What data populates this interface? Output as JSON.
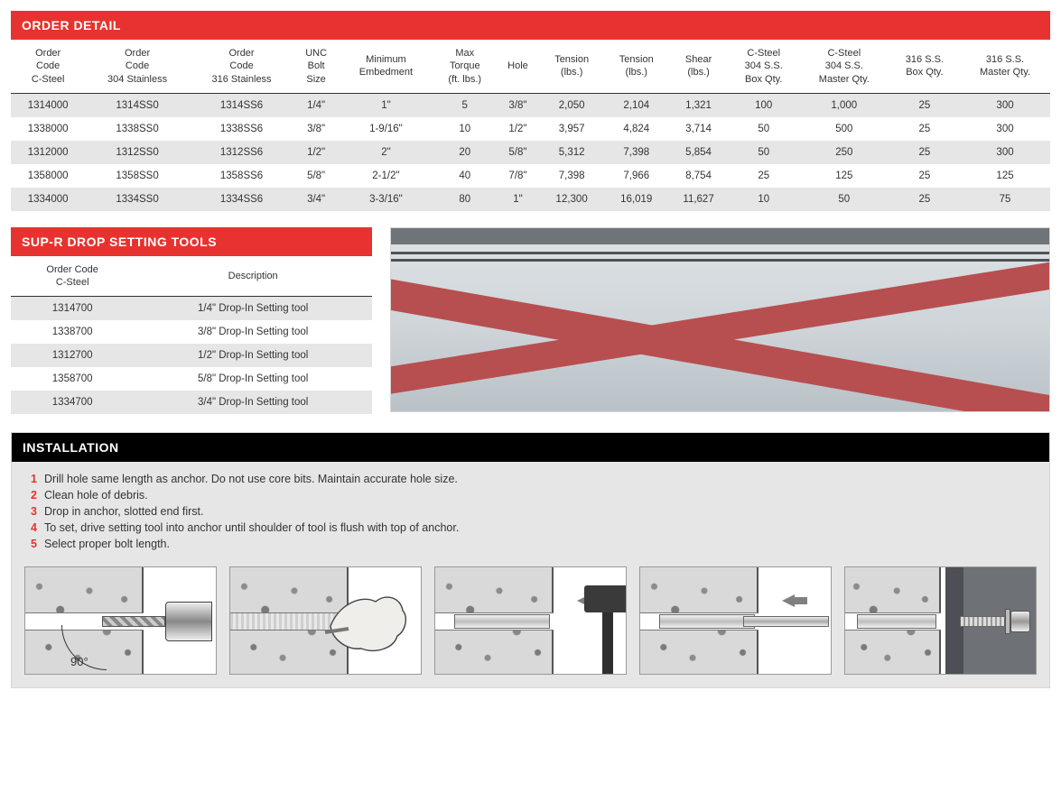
{
  "colors": {
    "red": "#e8322f",
    "black": "#000000",
    "stripe": "#e6e6e6",
    "panel_bg": "#e6e6e6",
    "text": "#333333"
  },
  "order_detail": {
    "title": "ORDER DETAIL",
    "columns": [
      "Order\nCode\nC-Steel",
      "Order\nCode\n304 Stainless",
      "Order\nCode\n316 Stainless",
      "UNC\nBolt\nSize",
      "Minimum\nEmbedment",
      "Max\nTorque\n(ft. lbs.)",
      "Hole",
      "Tension\n(lbs.)",
      "Tension\n(lbs.)",
      "Shear\n(lbs.)",
      "C-Steel\n304 S.S.\nBox Qty.",
      "C-Steel\n304 S.S.\nMaster Qty.",
      "316 S.S.\nBox Qty.",
      "316 S.S.\nMaster Qty."
    ],
    "rows": [
      [
        "1314000",
        "1314SS0",
        "1314SS6",
        "1/4\"",
        "1\"",
        "5",
        "3/8\"",
        "2,050",
        "2,104",
        "1,321",
        "100",
        "1,000",
        "25",
        "300"
      ],
      [
        "1338000",
        "1338SS0",
        "1338SS6",
        "3/8\"",
        "1-9/16\"",
        "10",
        "1/2\"",
        "3,957",
        "4,824",
        "3,714",
        "50",
        "500",
        "25",
        "300"
      ],
      [
        "1312000",
        "1312SS0",
        "1312SS6",
        "1/2\"",
        "2\"",
        "20",
        "5/8\"",
        "5,312",
        "7,398",
        "5,854",
        "50",
        "250",
        "25",
        "300"
      ],
      [
        "1358000",
        "1358SS0",
        "1358SS6",
        "5/8\"",
        "2-1/2\"",
        "40",
        "7/8\"",
        "7,398",
        "7,966",
        "8,754",
        "25",
        "125",
        "25",
        "125"
      ],
      [
        "1334000",
        "1334SS0",
        "1334SS6",
        "3/4\"",
        "3-3/16\"",
        "80",
        "1\"",
        "12,300",
        "16,019",
        "11,627",
        "10",
        "50",
        "25",
        "75"
      ]
    ]
  },
  "tools": {
    "title": "SUP-R DROP SETTING TOOLS",
    "columns": [
      "Order Code\nC-Steel",
      "Description"
    ],
    "rows": [
      [
        "1314700",
        "1/4\" Drop-In Setting tool"
      ],
      [
        "1338700",
        "3/8\" Drop-In Setting tool"
      ],
      [
        "1312700",
        "1/2\" Drop-In Setting tool"
      ],
      [
        "1358700",
        "5/8\" Drop-In Setting tool"
      ],
      [
        "1334700",
        "3/4\" Drop-In Setting tool"
      ]
    ]
  },
  "installation": {
    "title": "INSTALLATION",
    "steps": [
      "Drill hole same length as anchor. Do not use core bits. Maintain accurate hole size.",
      "Clean hole of debris.",
      "Drop in anchor, slotted end first.",
      "To set, drive setting tool into anchor until shoulder of tool is flush with top of anchor.",
      "Select proper bolt length."
    ],
    "diagram_labels": {
      "angle": "90°"
    },
    "diagram_count": 5
  }
}
